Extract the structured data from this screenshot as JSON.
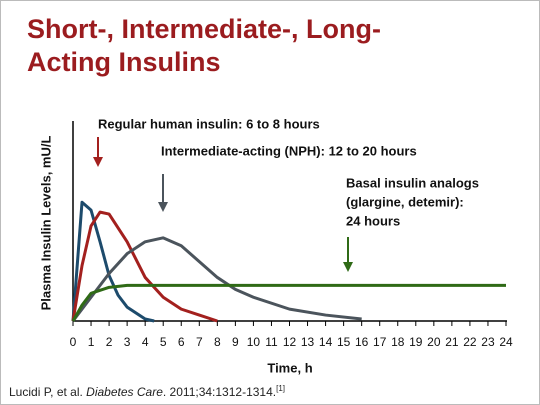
{
  "chart_data": {
    "type": "line",
    "title": "Short-, Intermediate-, Long-Acting Insulins",
    "xlabel": "Time, h",
    "ylabel": "Plasma Insulin Levels, mU/L",
    "xlim": [
      0,
      24
    ],
    "ylim": [
      0,
      100
    ],
    "xticks": [
      0,
      1,
      2,
      3,
      4,
      5,
      6,
      7,
      8,
      9,
      10,
      11,
      12,
      13,
      14,
      15,
      16,
      17,
      18,
      19,
      20,
      21,
      22,
      23,
      24
    ],
    "series": [
      {
        "color": "#1d4b6c",
        "x": [
          0,
          0.5,
          1,
          1.5,
          2,
          2.5,
          3,
          4,
          4.5
        ],
        "values": [
          0,
          60,
          56,
          40,
          23,
          13,
          7,
          1,
          0
        ]
      },
      {
        "color": "#a3201e",
        "x": [
          0,
          0.5,
          1,
          1.5,
          2,
          3,
          4,
          5,
          6,
          7,
          8
        ],
        "values": [
          0,
          28,
          48,
          55,
          54,
          40,
          22,
          12,
          6,
          3,
          0
        ]
      },
      {
        "color": "#4b545c",
        "x": [
          0,
          1,
          2,
          3,
          4,
          5,
          6,
          7,
          8,
          9,
          10,
          12,
          14,
          16
        ],
        "values": [
          0,
          12,
          24,
          34,
          40,
          42,
          38,
          30,
          22,
          16,
          12,
          6,
          3,
          1
        ]
      },
      {
        "color": "#2f6a16",
        "x": [
          0,
          0.5,
          1,
          2,
          3,
          4,
          6,
          8,
          12,
          16,
          20,
          24
        ],
        "values": [
          0,
          8,
          14,
          17,
          18,
          18,
          18,
          18,
          18,
          18,
          18,
          18
        ]
      }
    ],
    "annotations": [
      {
        "text": [
          "Regular human insulin: 6 to 8 hours"
        ],
        "color": "#a3201e"
      },
      {
        "text": [
          "Intermediate-acting (NPH): 12 to 20 hours"
        ],
        "color": "#4b545c"
      },
      {
        "text": [
          "Basal insulin analogs",
          "(glargine, detemir):",
          "24  hours"
        ],
        "color": "#2f6a16"
      }
    ]
  },
  "citation": {
    "authors": "Lucidi P, et al. ",
    "journal": "Diabetes Care",
    "details": ". 2011;34:1312-1314.",
    "ref": "[1]"
  }
}
